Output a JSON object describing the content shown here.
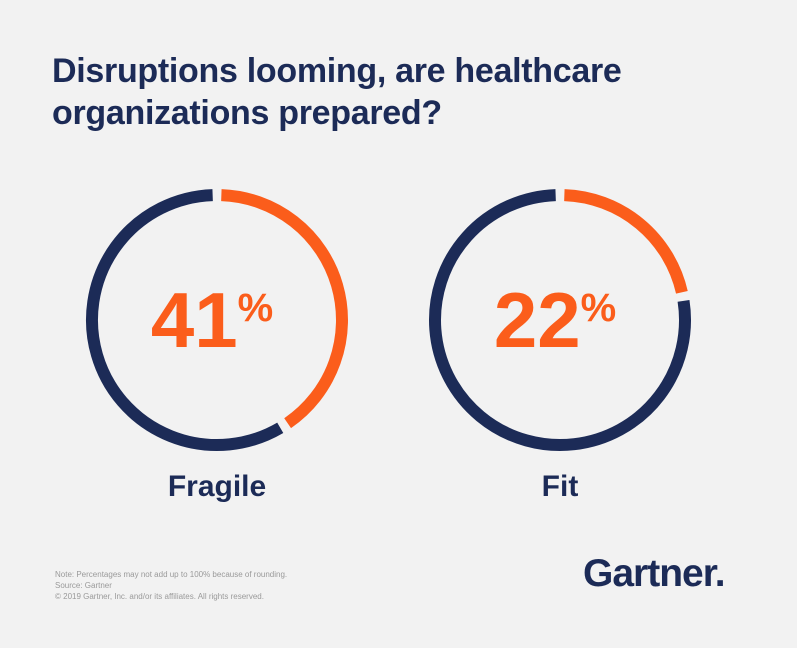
{
  "title": {
    "line1": "Disruptions looming, are healthcare",
    "line2": "organizations prepared?"
  },
  "chart_data": {
    "type": "pie",
    "variant": "donut",
    "title": "Disruptions looming, are healthcare organizations prepared?",
    "categories": [
      "Fragile",
      "Fit"
    ],
    "values": [
      41,
      22
    ],
    "unit": "%",
    "colors": {
      "highlight": "#fb5d1b",
      "remainder": "#1c2b57"
    }
  },
  "footnotes": {
    "note": "Note: Percentages may not add up to 100% because of rounding.",
    "source": "Source: Gartner",
    "copyright": "© 2019 Gartner, Inc. and/or its affiliates. All rights reserved."
  },
  "brand": {
    "name": "Gartner."
  }
}
